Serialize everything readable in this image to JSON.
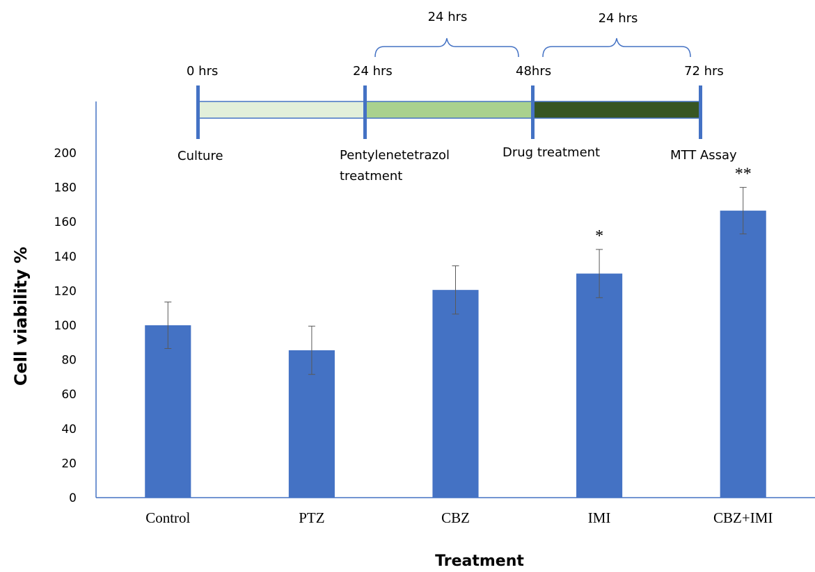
{
  "chart_data": {
    "type": "bar",
    "categories": [
      "Control",
      "PTZ",
      "CBZ",
      "IMI",
      "CBZ+IMI"
    ],
    "series": [
      {
        "values": [
          100,
          85.5,
          120.5,
          130,
          166.5
        ],
        "error": [
          13.5,
          14,
          14,
          14,
          13.5
        ],
        "annotations": [
          "",
          "",
          "",
          "*",
          "**"
        ]
      }
    ],
    "xlabel": "Treatment",
    "ylabel": "Cell viability %",
    "ylim": [
      0,
      200
    ],
    "yticks": [
      0,
      20,
      40,
      60,
      80,
      100,
      120,
      140,
      160,
      180,
      200
    ],
    "grid": false,
    "bar_color": "#4472C4"
  },
  "timeline": {
    "time_labels": [
      "0 hrs",
      "24 hrs",
      "48hrs",
      "72 hrs"
    ],
    "stages": [
      "Culture",
      "Pentylenetetrazol",
      "treatment",
      "Drug treatment",
      "MTT Assay"
    ],
    "brace_labels": [
      "24 hrs",
      "24 hrs"
    ],
    "segment_colors": [
      "#E2EFDA",
      "#A9D18E",
      "#375623"
    ],
    "marker_color": "#4472C4"
  }
}
